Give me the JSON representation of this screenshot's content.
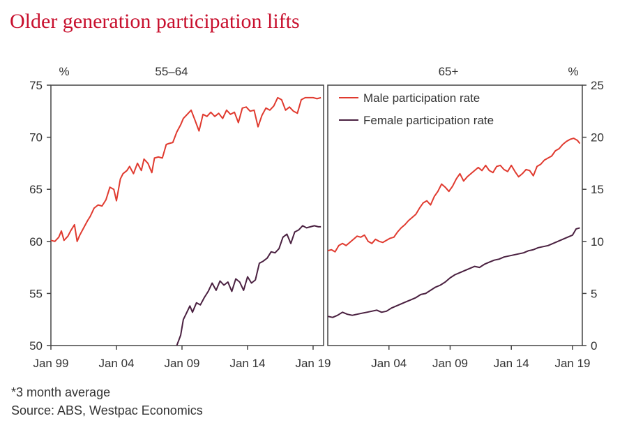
{
  "title": "Older generation participation lifts",
  "footnotes": {
    "note": "*3 month average",
    "source": "Source: ABS, Westpac Economics"
  },
  "colors": {
    "male": "#e03a2f",
    "female": "#4a2040",
    "title": "#c8102e"
  },
  "chart_data": [
    {
      "type": "line",
      "title": "55–64",
      "unit_label": "%",
      "y_axis_side": "left",
      "ylim": [
        50,
        75
      ],
      "yticks": [
        50,
        55,
        60,
        65,
        70,
        75
      ],
      "xlim": [
        1999.0,
        2019.8
      ],
      "xtick_values": [
        1999.0,
        2004.0,
        2009.0,
        2014.0,
        2019.0
      ],
      "xtick_labels": [
        "Jan 99",
        "Jan 04",
        "Jan 09",
        "Jan 14",
        "Jan 19"
      ],
      "series": [
        {
          "key": "male",
          "x": [
            1999.0,
            1999.3,
            1999.6,
            1999.8,
            2000.0,
            2000.3,
            2000.5,
            2000.8,
            2001.0,
            2001.2,
            2001.5,
            2001.8,
            2002.0,
            2002.3,
            2002.6,
            2002.9,
            2003.2,
            2003.5,
            2003.8,
            2004.0,
            2004.3,
            2004.5,
            2004.8,
            2005.0,
            2005.3,
            2005.6,
            2005.9,
            2006.1,
            2006.4,
            2006.7,
            2006.9,
            2007.2,
            2007.5,
            2007.8,
            2008.0,
            2008.3,
            2008.6,
            2008.9,
            2009.1,
            2009.4,
            2009.7,
            2010.0,
            2010.3,
            2010.6,
            2010.9,
            2011.2,
            2011.5,
            2011.8,
            2012.1,
            2012.4,
            2012.7,
            2013.0,
            2013.3,
            2013.6,
            2013.9,
            2014.2,
            2014.5,
            2014.8,
            2015.1,
            2015.4,
            2015.7,
            2016.0,
            2016.3,
            2016.6,
            2016.9,
            2017.2,
            2017.5,
            2017.8,
            2018.1,
            2018.4,
            2018.7,
            2019.0,
            2019.3,
            2019.6
          ],
          "y": [
            60.1,
            60.0,
            60.4,
            61.0,
            60.1,
            60.5,
            61.0,
            61.6,
            60.0,
            60.6,
            61.3,
            62.0,
            62.4,
            63.2,
            63.5,
            63.4,
            64.0,
            65.2,
            65.0,
            63.9,
            66.0,
            66.5,
            66.8,
            67.2,
            66.5,
            67.5,
            66.8,
            67.9,
            67.5,
            66.6,
            68.0,
            68.1,
            68.0,
            69.3,
            69.4,
            69.5,
            70.5,
            71.2,
            71.8,
            72.2,
            72.6,
            71.6,
            70.6,
            72.2,
            72.0,
            72.4,
            72.0,
            72.3,
            71.8,
            72.6,
            72.2,
            72.4,
            71.4,
            72.8,
            72.9,
            72.5,
            72.6,
            71.0,
            72.1,
            72.8,
            72.6,
            73.0,
            73.8,
            73.6,
            72.6,
            72.9,
            72.5,
            72.3,
            73.6,
            73.8,
            73.8,
            73.8,
            73.7,
            73.8
          ]
        },
        {
          "key": "female",
          "x": [
            2008.6,
            2008.9,
            2009.1,
            2009.3,
            2009.6,
            2009.8,
            2010.1,
            2010.4,
            2010.7,
            2011.0,
            2011.3,
            2011.6,
            2011.9,
            2012.2,
            2012.5,
            2012.8,
            2013.1,
            2013.4,
            2013.7,
            2014.0,
            2014.3,
            2014.6,
            2014.9,
            2015.2,
            2015.5,
            2015.8,
            2016.1,
            2016.4,
            2016.7,
            2017.0,
            2017.3,
            2017.6,
            2017.9,
            2018.2,
            2018.5,
            2018.8,
            2019.1,
            2019.4,
            2019.6
          ],
          "y": [
            50.0,
            51.0,
            52.5,
            53.0,
            53.8,
            53.2,
            54.1,
            53.9,
            54.6,
            55.2,
            56.0,
            55.3,
            56.2,
            55.8,
            56.1,
            55.2,
            56.4,
            56.1,
            55.3,
            56.6,
            56.0,
            56.3,
            57.9,
            58.1,
            58.4,
            59.0,
            58.9,
            59.3,
            60.4,
            60.7,
            59.8,
            60.9,
            61.1,
            61.5,
            61.3,
            61.4,
            61.5,
            61.4,
            61.4
          ]
        }
      ]
    },
    {
      "type": "line",
      "title": "65+",
      "unit_label": "%",
      "y_axis_side": "right",
      "ylim": [
        0,
        25
      ],
      "yticks": [
        0,
        5,
        10,
        15,
        20,
        25
      ],
      "xlim": [
        1999.0,
        2019.8
      ],
      "xtick_values": [
        2004.0,
        2009.0,
        2014.0,
        2019.0
      ],
      "xtick_labels": [
        "Jan 04",
        "Jan 09",
        "Jan 14",
        "Jan 19"
      ],
      "legend": {
        "placement": "top-left",
        "entries": [
          {
            "key": "male",
            "label": "Male participation rate"
          },
          {
            "key": "female",
            "label": "Female participation rate"
          }
        ]
      },
      "series": [
        {
          "key": "male",
          "x": [
            1999.0,
            1999.3,
            1999.6,
            1999.9,
            2000.2,
            2000.5,
            2000.8,
            2001.1,
            2001.4,
            2001.7,
            2002.0,
            2002.3,
            2002.6,
            2002.9,
            2003.2,
            2003.5,
            2003.8,
            2004.1,
            2004.4,
            2004.7,
            2005.0,
            2005.3,
            2005.6,
            2005.9,
            2006.2,
            2006.5,
            2006.8,
            2007.1,
            2007.4,
            2007.7,
            2008.0,
            2008.3,
            2008.6,
            2008.9,
            2009.2,
            2009.5,
            2009.8,
            2010.1,
            2010.4,
            2010.7,
            2011.0,
            2011.3,
            2011.6,
            2011.9,
            2012.2,
            2012.5,
            2012.8,
            2013.1,
            2013.4,
            2013.7,
            2014.0,
            2014.3,
            2014.6,
            2014.9,
            2015.2,
            2015.5,
            2015.8,
            2016.1,
            2016.4,
            2016.7,
            2017.0,
            2017.3,
            2017.6,
            2017.9,
            2018.2,
            2018.5,
            2018.8,
            2019.1,
            2019.4,
            2019.6
          ],
          "y": [
            9.1,
            9.2,
            9.0,
            9.6,
            9.8,
            9.6,
            9.9,
            10.2,
            10.5,
            10.4,
            10.6,
            10.0,
            9.8,
            10.2,
            10.0,
            9.9,
            10.1,
            10.3,
            10.4,
            10.9,
            11.3,
            11.6,
            12.0,
            12.3,
            12.6,
            13.2,
            13.7,
            13.9,
            13.5,
            14.3,
            14.8,
            15.5,
            15.2,
            14.8,
            15.3,
            16.0,
            16.5,
            15.8,
            16.2,
            16.5,
            16.8,
            17.1,
            16.8,
            17.3,
            16.8,
            16.6,
            17.2,
            17.3,
            16.9,
            16.7,
            17.3,
            16.7,
            16.2,
            16.5,
            16.9,
            16.8,
            16.3,
            17.2,
            17.4,
            17.8,
            18.0,
            18.2,
            18.7,
            18.9,
            19.3,
            19.6,
            19.8,
            19.9,
            19.7,
            19.4
          ]
        },
        {
          "key": "female",
          "x": [
            1999.0,
            1999.4,
            1999.8,
            2000.2,
            2000.6,
            2001.0,
            2001.4,
            2001.8,
            2002.2,
            2002.6,
            2003.0,
            2003.4,
            2003.8,
            2004.2,
            2004.6,
            2005.0,
            2005.4,
            2005.8,
            2006.2,
            2006.6,
            2007.0,
            2007.4,
            2007.8,
            2008.2,
            2008.6,
            2009.0,
            2009.4,
            2009.8,
            2010.2,
            2010.6,
            2011.0,
            2011.4,
            2011.8,
            2012.2,
            2012.6,
            2013.0,
            2013.4,
            2013.8,
            2014.2,
            2014.6,
            2015.0,
            2015.4,
            2015.8,
            2016.2,
            2016.6,
            2017.0,
            2017.4,
            2017.8,
            2018.2,
            2018.6,
            2019.0,
            2019.3,
            2019.6
          ],
          "y": [
            2.8,
            2.7,
            2.9,
            3.2,
            3.0,
            2.9,
            3.0,
            3.1,
            3.2,
            3.3,
            3.4,
            3.2,
            3.3,
            3.6,
            3.8,
            4.0,
            4.2,
            4.4,
            4.6,
            4.9,
            5.0,
            5.3,
            5.6,
            5.8,
            6.1,
            6.5,
            6.8,
            7.0,
            7.2,
            7.4,
            7.6,
            7.5,
            7.8,
            8.0,
            8.2,
            8.3,
            8.5,
            8.6,
            8.7,
            8.8,
            8.9,
            9.1,
            9.2,
            9.4,
            9.5,
            9.6,
            9.8,
            10.0,
            10.2,
            10.4,
            10.6,
            11.2,
            11.3
          ]
        }
      ]
    }
  ]
}
